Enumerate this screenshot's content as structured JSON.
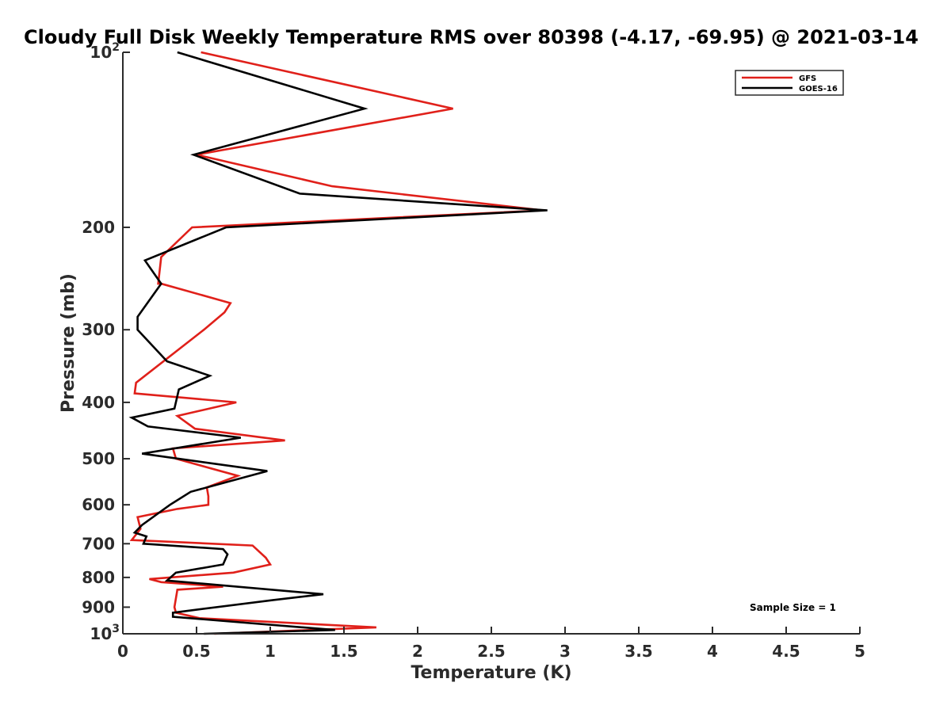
{
  "chart_data": {
    "type": "line",
    "title": "Cloudy Full Disk Weekly Temperature RMS over 80398 (-4.17, -69.95) @ 2021-03-14",
    "xlabel": "Temperature (K)",
    "ylabel": "Pressure (mb)",
    "xlim": [
      0,
      5
    ],
    "ylim": [
      100,
      1000
    ],
    "yscale": "log",
    "y_inverted": true,
    "grid": false,
    "legend_position": "top-right",
    "x_ticks": [
      {
        "value": 0,
        "label": "0"
      },
      {
        "value": 0.5,
        "label": "0.5"
      },
      {
        "value": 1,
        "label": "1"
      },
      {
        "value": 1.5,
        "label": "1.5"
      },
      {
        "value": 2,
        "label": "2"
      },
      {
        "value": 2.5,
        "label": "2.5"
      },
      {
        "value": 3,
        "label": "3"
      },
      {
        "value": 3.5,
        "label": "3.5"
      },
      {
        "value": 4,
        "label": "4"
      },
      {
        "value": 4.5,
        "label": "4.5"
      },
      {
        "value": 5,
        "label": "5"
      }
    ],
    "y_ticks": [
      {
        "value": 100,
        "label": "10",
        "exponent": "2"
      },
      {
        "value": 200,
        "label": "200"
      },
      {
        "value": 300,
        "label": "300"
      },
      {
        "value": 400,
        "label": "400"
      },
      {
        "value": 500,
        "label": "500"
      },
      {
        "value": 600,
        "label": "600"
      },
      {
        "value": 700,
        "label": "700"
      },
      {
        "value": 800,
        "label": "800"
      },
      {
        "value": 900,
        "label": "900"
      },
      {
        "value": 1000,
        "label": "10",
        "exponent": "3"
      }
    ],
    "annotation": "Sample Size = 1",
    "series": [
      {
        "name": "GFS",
        "color": "#e0201a",
        "points": [
          {
            "x": 0.53,
            "y": 100
          },
          {
            "x": 2.24,
            "y": 125
          },
          {
            "x": 0.5,
            "y": 150
          },
          {
            "x": 1.42,
            "y": 170
          },
          {
            "x": 2.85,
            "y": 187
          },
          {
            "x": 0.47,
            "y": 200
          },
          {
            "x": 0.26,
            "y": 225
          },
          {
            "x": 0.24,
            "y": 250
          },
          {
            "x": 0.26,
            "y": 250
          },
          {
            "x": 0.73,
            "y": 270
          },
          {
            "x": 0.69,
            "y": 280
          },
          {
            "x": 0.55,
            "y": 300
          },
          {
            "x": 0.09,
            "y": 370
          },
          {
            "x": 0.08,
            "y": 386
          },
          {
            "x": 0.77,
            "y": 400
          },
          {
            "x": 0.37,
            "y": 422
          },
          {
            "x": 0.49,
            "y": 444
          },
          {
            "x": 1.1,
            "y": 465
          },
          {
            "x": 0.34,
            "y": 480
          },
          {
            "x": 0.36,
            "y": 500
          },
          {
            "x": 0.78,
            "y": 535
          },
          {
            "x": 0.57,
            "y": 560
          },
          {
            "x": 0.58,
            "y": 580
          },
          {
            "x": 0.58,
            "y": 600
          },
          {
            "x": 0.37,
            "y": 610
          },
          {
            "x": 0.1,
            "y": 630
          },
          {
            "x": 0.12,
            "y": 660
          },
          {
            "x": 0.06,
            "y": 690
          },
          {
            "x": 0.88,
            "y": 705
          },
          {
            "x": 0.97,
            "y": 740
          },
          {
            "x": 1.0,
            "y": 760
          },
          {
            "x": 0.75,
            "y": 785
          },
          {
            "x": 0.18,
            "y": 805
          },
          {
            "x": 0.26,
            "y": 815
          },
          {
            "x": 0.68,
            "y": 830
          },
          {
            "x": 0.37,
            "y": 840
          },
          {
            "x": 0.35,
            "y": 900
          },
          {
            "x": 0.36,
            "y": 920
          },
          {
            "x": 0.52,
            "y": 940
          },
          {
            "x": 1.72,
            "y": 975
          },
          {
            "x": 0.62,
            "y": 1000
          }
        ]
      },
      {
        "name": "GOES-16",
        "color": "#000000",
        "points": [
          {
            "x": 0.37,
            "y": 100
          },
          {
            "x": 1.64,
            "y": 125
          },
          {
            "x": 0.48,
            "y": 150
          },
          {
            "x": 1.2,
            "y": 175
          },
          {
            "x": 2.88,
            "y": 187
          },
          {
            "x": 0.7,
            "y": 200
          },
          {
            "x": 0.15,
            "y": 228
          },
          {
            "x": 0.26,
            "y": 250
          },
          {
            "x": 0.1,
            "y": 285
          },
          {
            "x": 0.1,
            "y": 300
          },
          {
            "x": 0.3,
            "y": 340
          },
          {
            "x": 0.59,
            "y": 360
          },
          {
            "x": 0.38,
            "y": 380
          },
          {
            "x": 0.35,
            "y": 410
          },
          {
            "x": 0.06,
            "y": 425
          },
          {
            "x": 0.17,
            "y": 440
          },
          {
            "x": 0.8,
            "y": 460
          },
          {
            "x": 0.13,
            "y": 490
          },
          {
            "x": 0.98,
            "y": 525
          },
          {
            "x": 0.46,
            "y": 570
          },
          {
            "x": 0.32,
            "y": 600
          },
          {
            "x": 0.13,
            "y": 650
          },
          {
            "x": 0.08,
            "y": 670
          },
          {
            "x": 0.16,
            "y": 680
          },
          {
            "x": 0.14,
            "y": 700
          },
          {
            "x": 0.68,
            "y": 715
          },
          {
            "x": 0.71,
            "y": 730
          },
          {
            "x": 0.68,
            "y": 760
          },
          {
            "x": 0.36,
            "y": 785
          },
          {
            "x": 0.3,
            "y": 810
          },
          {
            "x": 1.36,
            "y": 855
          },
          {
            "x": 1.02,
            "y": 875
          },
          {
            "x": 0.34,
            "y": 920
          },
          {
            "x": 0.34,
            "y": 935
          },
          {
            "x": 1.44,
            "y": 985
          },
          {
            "x": 0.55,
            "y": 1000
          }
        ]
      }
    ]
  }
}
